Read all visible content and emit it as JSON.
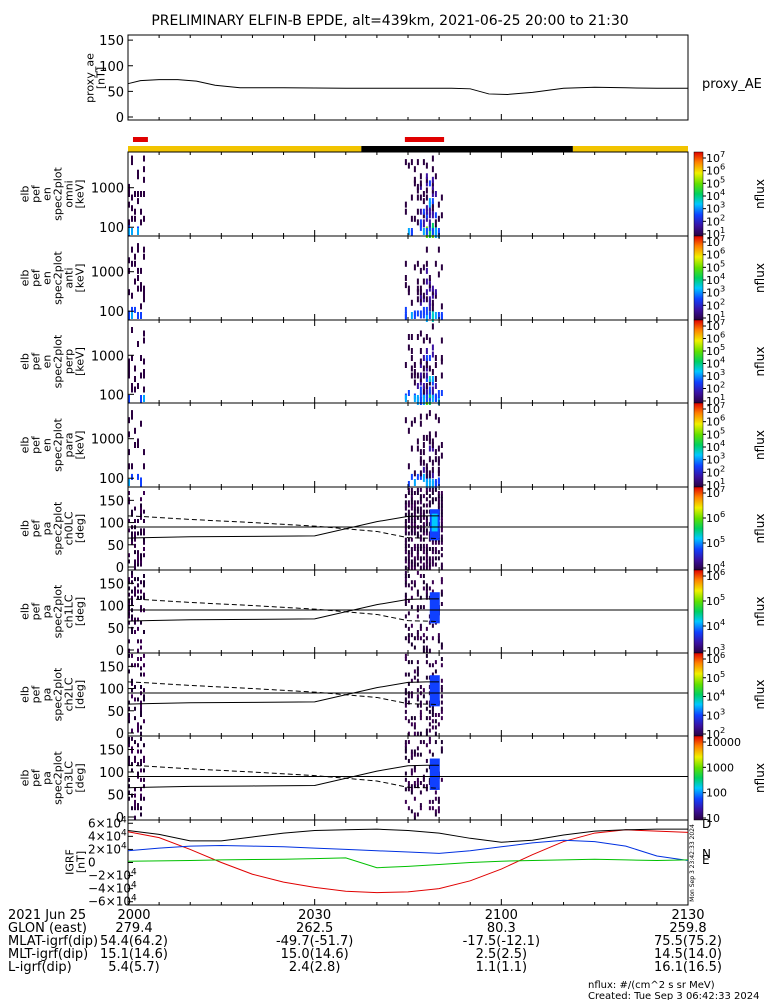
{
  "title": "PRELIMINARY ELFIN-B EPDE, alt=439km, 2021-06-25 20:00 to 21:30",
  "proxy_panel": {
    "ylabel": [
      "proxy_ae",
      "[nT]"
    ],
    "ticks": [
      "150",
      "100",
      "50",
      "0"
    ],
    "series_name": "proxy_AE"
  },
  "spec_panels": [
    {
      "ylabel": [
        "elb",
        "pef",
        "en",
        "spec2plot",
        "omni",
        "[keV]"
      ],
      "ticks": [
        "1000",
        "100"
      ]
    },
    {
      "ylabel": [
        "elb",
        "pef",
        "en",
        "spec2plot",
        "anti",
        "[keV]"
      ],
      "ticks": [
        "1000",
        "100"
      ]
    },
    {
      "ylabel": [
        "elb",
        "pef",
        "en",
        "spec2plot",
        "perp",
        "[keV]"
      ],
      "ticks": [
        "1000",
        "100"
      ]
    },
    {
      "ylabel": [
        "elb",
        "pef",
        "en",
        "spec2plot",
        "para",
        "[keV]"
      ],
      "ticks": [
        "1000",
        "100"
      ]
    }
  ],
  "pa_panels": [
    {
      "ylabel": [
        "elb",
        "pef",
        "pa",
        "spec2plot",
        "ch0LC",
        "[deg]"
      ],
      "ticks": [
        "150",
        "100",
        "50",
        "0"
      ]
    },
    {
      "ylabel": [
        "elb",
        "pef",
        "pa",
        "spec2plot",
        "ch1LC",
        "[deg]"
      ],
      "ticks": [
        "150",
        "100",
        "50",
        "0"
      ]
    },
    {
      "ylabel": [
        "elb",
        "pef",
        "pa",
        "spec2plot",
        "ch2LC",
        "[deg]"
      ],
      "ticks": [
        "150",
        "100",
        "50",
        "0"
      ]
    },
    {
      "ylabel": [
        "elb",
        "pef",
        "pa",
        "spec2plot",
        "ch3LC",
        "[deg]"
      ],
      "ticks": [
        "150",
        "100",
        "50",
        "0"
      ]
    }
  ],
  "colorbars": {
    "unit": "nflux",
    "bars": [
      {
        "labels": [
          "10^7",
          "10^6",
          "10^5",
          "10^4",
          "10^3",
          "10^2",
          "10^1"
        ]
      },
      {
        "labels": [
          "10^7",
          "10^6",
          "10^5",
          "10^4",
          "10^3",
          "10^2",
          "10^1"
        ]
      },
      {
        "labels": [
          "10^7",
          "10^6",
          "10^5",
          "10^4",
          "10^3",
          "10^2",
          "10^1"
        ]
      },
      {
        "labels": [
          "10^7",
          "10^6",
          "10^5",
          "10^4",
          "10^3",
          "10^2",
          "10^1"
        ]
      },
      {
        "labels": [
          "10^7",
          "10^6",
          "10^5",
          "10^4"
        ]
      },
      {
        "labels": [
          "10^6",
          "10^5",
          "10^4",
          "10^3"
        ]
      },
      {
        "labels": [
          "10^6",
          "10^5",
          "10^4",
          "10^3",
          "10^2"
        ]
      },
      {
        "labels": [
          "10000",
          "1000",
          "100",
          "10"
        ]
      }
    ]
  },
  "igrf_panel": {
    "ylabel": [
      "IGRF",
      "[nT]"
    ],
    "ticks": [
      "6×10^4",
      "4×10^4",
      "2×10^4",
      "0",
      "−2×10^4",
      "−4×10^4",
      "−6×10^4"
    ],
    "components": [
      "D",
      "N",
      "E"
    ],
    "colors": {
      "D": "#e00000",
      "N": "#0030e0",
      "E": "#00c000",
      "total": "#000000"
    },
    "side_text": "Mon Sep  3 23:42:33 2024"
  },
  "footer": {
    "row_labels": [
      "2021 Jun 25",
      "GLON (east)",
      "MLAT-igrf(dip)",
      "MLT-igrf(dip)",
      "L-igrf(dip)"
    ],
    "columns": [
      {
        "time": "2000",
        "values": [
          "279.4",
          "54.4(64.2)",
          "15.1(14.6)",
          "5.4(5.7)"
        ]
      },
      {
        "time": "2030",
        "values": [
          "262.5",
          "-49.7(-51.7)",
          "15.0(14.6)",
          "2.4(2.8)"
        ]
      },
      {
        "time": "2100",
        "values": [
          "80.3",
          "-17.5(-12.1)",
          "2.5(2.5)",
          "1.1(1.1)"
        ]
      },
      {
        "time": "2130",
        "values": [
          "259.8",
          "75.5(75.2)",
          "14.5(14.0)",
          "16.1(16.5)"
        ]
      }
    ],
    "unit_note": "nflux: #/(cm^2 s sr MeV)",
    "created": "Created: Tue Sep  3 06:42:33 2024"
  },
  "chart_data": {
    "type": "line",
    "title": "PRELIMINARY ELFIN-B EPDE, alt=439km, 2021-06-25 20:00 to 21:30",
    "x_range_min": [
      0,
      90
    ],
    "x_ticks": [
      "2000",
      "2030",
      "2100",
      "2130"
    ],
    "proxy_ae": {
      "name": "proxy_AE",
      "ylim": [
        0,
        160
      ],
      "x": [
        0,
        2,
        5,
        8,
        11,
        14,
        18,
        25,
        35,
        45,
        52,
        55,
        58,
        61,
        65,
        70,
        75,
        80,
        85,
        90
      ],
      "y": [
        65,
        71,
        73,
        73,
        70,
        62,
        57,
        57,
        56,
        56,
        56,
        55,
        45,
        44,
        48,
        56,
        58,
        57,
        56,
        56
      ]
    },
    "orbit_bar": {
      "segments": [
        {
          "from": 0,
          "to": 37.5,
          "color": "#f2c400"
        },
        {
          "from": 37.5,
          "to": 71.5,
          "color": "#000000"
        },
        {
          "from": 71.5,
          "to": 90,
          "color": "#f2c400"
        }
      ],
      "science_zones": [
        [
          0.8,
          3.2
        ],
        [
          44.5,
          50.8
        ]
      ]
    },
    "spectrogram": {
      "bursts_min": [
        [
          0,
          3.2
        ],
        [
          44.5,
          50.8
        ]
      ],
      "energy_range_keV": [
        60,
        8000
      ],
      "pa_range_deg": [
        0,
        180
      ]
    },
    "loss_cone": {
      "x": [
        0,
        3,
        10,
        20,
        30,
        40,
        45,
        48,
        50
      ],
      "solid": [
        65,
        66,
        68,
        69,
        70,
        102,
        114,
        115,
        115
      ],
      "dashed": [
        115,
        113,
        107,
        100,
        92,
        80,
        66,
        65,
        64
      ],
      "ref_line": 90
    },
    "igrf": {
      "ylim": [
        -65000,
        65000
      ],
      "x": [
        0,
        5,
        10,
        15,
        20,
        25,
        30,
        35,
        40,
        45,
        50,
        55,
        60,
        65,
        70,
        75,
        80,
        85,
        90
      ],
      "series": [
        {
          "name": "D",
          "values": [
            47000,
            38000,
            20000,
            0,
            -18000,
            -30000,
            -38000,
            -44000,
            -46000,
            -45000,
            -40000,
            -28000,
            -10000,
            12000,
            32000,
            45000,
            50000,
            48000,
            46000
          ]
        },
        {
          "name": "N",
          "values": [
            18000,
            22000,
            25000,
            26000,
            25000,
            24000,
            22000,
            20000,
            18000,
            16000,
            14000,
            18000,
            24000,
            30000,
            34000,
            32000,
            25000,
            10000,
            3000
          ]
        },
        {
          "name": "E",
          "values": [
            2000,
            2500,
            3000,
            4000,
            4500,
            5000,
            6000,
            7000,
            -8000,
            -6000,
            -3000,
            0,
            2000,
            3000,
            4000,
            5000,
            4000,
            3000,
            4000
          ]
        },
        {
          "name": "total",
          "values": [
            49000,
            43000,
            33000,
            33000,
            39000,
            45000,
            49000,
            50000,
            51000,
            49000,
            45000,
            37000,
            31000,
            34000,
            42000,
            48000,
            50000,
            51000,
            51000
          ]
        }
      ]
    }
  }
}
